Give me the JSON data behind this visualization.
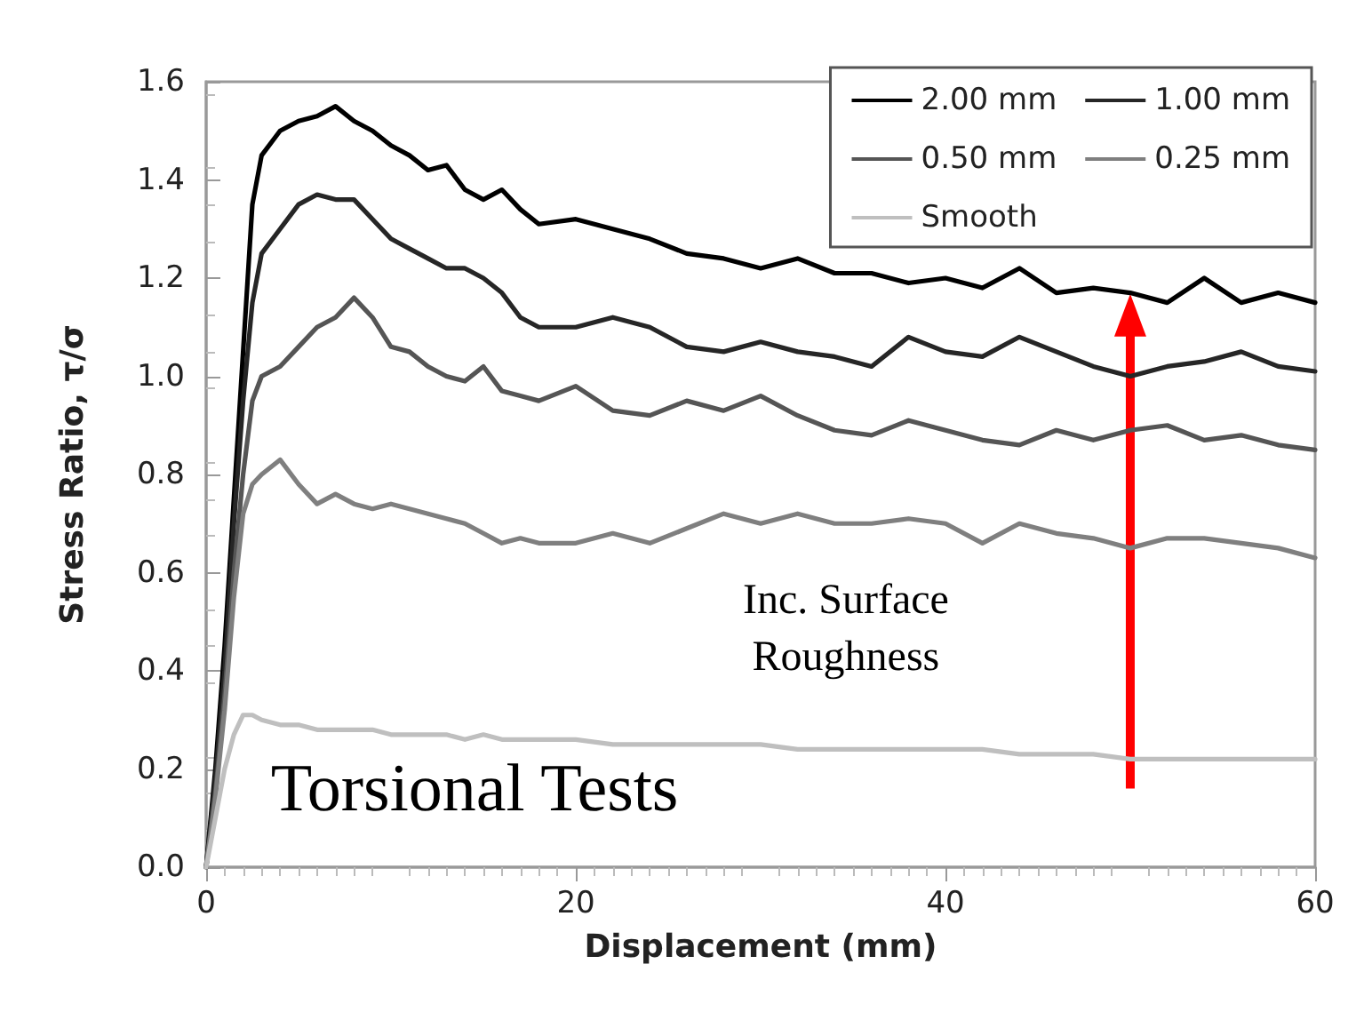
{
  "chart_data": {
    "type": "line",
    "xlabel": "Displacement (mm)",
    "ylabel": "Stress Ratio, τ/σ",
    "annotations": [
      "Torsional Tests",
      "Inc. Surface Roughness"
    ],
    "x": [
      0,
      0.5,
      1,
      1.5,
      2,
      2.5,
      3,
      4,
      5,
      6,
      7,
      8,
      9,
      10,
      11,
      12,
      13,
      14,
      15,
      16,
      17,
      18,
      20,
      22,
      24,
      26,
      28,
      30,
      32,
      34,
      36,
      38,
      40,
      42,
      44,
      46,
      48,
      50,
      52,
      54,
      56,
      58,
      60
    ],
    "series": [
      {
        "name": "2.00 mm",
        "color": "#000000",
        "values": [
          0,
          0.2,
          0.45,
          0.75,
          1.05,
          1.35,
          1.45,
          1.5,
          1.52,
          1.53,
          1.55,
          1.52,
          1.5,
          1.47,
          1.45,
          1.42,
          1.43,
          1.38,
          1.36,
          1.38,
          1.34,
          1.31,
          1.32,
          1.3,
          1.28,
          1.25,
          1.24,
          1.22,
          1.24,
          1.21,
          1.21,
          1.19,
          1.2,
          1.18,
          1.22,
          1.17,
          1.18,
          1.17,
          1.15,
          1.2,
          1.15,
          1.17,
          1.15
        ]
      },
      {
        "name": "1.00 mm",
        "color": "#262626",
        "values": [
          0,
          0.18,
          0.4,
          0.7,
          0.95,
          1.15,
          1.25,
          1.3,
          1.35,
          1.37,
          1.36,
          1.36,
          1.32,
          1.28,
          1.26,
          1.24,
          1.22,
          1.22,
          1.2,
          1.17,
          1.12,
          1.1,
          1.1,
          1.12,
          1.1,
          1.06,
          1.05,
          1.07,
          1.05,
          1.04,
          1.02,
          1.08,
          1.05,
          1.04,
          1.08,
          1.05,
          1.02,
          1.0,
          1.02,
          1.03,
          1.05,
          1.02,
          1.01
        ]
      },
      {
        "name": "0.50 mm",
        "color": "#555555",
        "values": [
          0,
          0.15,
          0.35,
          0.6,
          0.8,
          0.95,
          1.0,
          1.02,
          1.06,
          1.1,
          1.12,
          1.16,
          1.12,
          1.06,
          1.05,
          1.02,
          1.0,
          0.99,
          1.02,
          0.97,
          0.96,
          0.95,
          0.98,
          0.93,
          0.92,
          0.95,
          0.93,
          0.96,
          0.92,
          0.89,
          0.88,
          0.91,
          0.89,
          0.87,
          0.86,
          0.89,
          0.87,
          0.89,
          0.9,
          0.87,
          0.88,
          0.86,
          0.85
        ]
      },
      {
        "name": "0.25 mm",
        "color": "#7f7f7f",
        "values": [
          0,
          0.14,
          0.32,
          0.55,
          0.72,
          0.78,
          0.8,
          0.83,
          0.78,
          0.74,
          0.76,
          0.74,
          0.73,
          0.74,
          0.73,
          0.72,
          0.71,
          0.7,
          0.68,
          0.66,
          0.67,
          0.66,
          0.66,
          0.68,
          0.66,
          0.69,
          0.72,
          0.7,
          0.72,
          0.7,
          0.7,
          0.71,
          0.7,
          0.66,
          0.7,
          0.68,
          0.67,
          0.65,
          0.67,
          0.67,
          0.66,
          0.65,
          0.63
        ]
      },
      {
        "name": "Smooth",
        "color": "#bfbfbf",
        "values": [
          0,
          0.1,
          0.2,
          0.27,
          0.31,
          0.31,
          0.3,
          0.29,
          0.29,
          0.28,
          0.28,
          0.28,
          0.28,
          0.27,
          0.27,
          0.27,
          0.27,
          0.26,
          0.27,
          0.26,
          0.26,
          0.26,
          0.26,
          0.25,
          0.25,
          0.25,
          0.25,
          0.25,
          0.24,
          0.24,
          0.24,
          0.24,
          0.24,
          0.24,
          0.23,
          0.23,
          0.23,
          0.22,
          0.22,
          0.22,
          0.22,
          0.22,
          0.22
        ]
      }
    ],
    "xlim": [
      0,
      60
    ],
    "xticks": [
      0,
      20,
      40,
      60
    ],
    "ylim": [
      0,
      1.6
    ],
    "yticks": [
      {
        "value": 0,
        "label": "0.0"
      },
      0.2,
      0.4,
      0.6,
      0.8,
      {
        "value": 1,
        "label": "1.0"
      },
      1.2,
      1.4,
      1.6
    ],
    "grid": false,
    "legend": "top right",
    "marker": "none",
    "line_style": "solid"
  }
}
